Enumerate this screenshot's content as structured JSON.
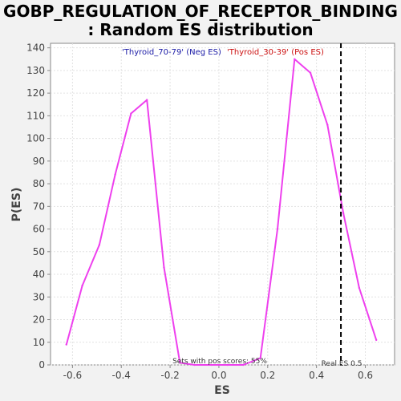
{
  "chart_data": {
    "type": "line",
    "title": "GOBP_REGULATION_OF_RECEPTOR_BINDING",
    "subtitle": ": Random ES distribution",
    "xlabel": "ES",
    "ylabel": "P(ES)",
    "xlim": [
      -0.69,
      0.72
    ],
    "ylim": [
      0,
      142
    ],
    "xticks": [
      -0.6,
      -0.4,
      -0.2,
      0.0,
      0.2,
      0.4,
      0.6
    ],
    "xtick_labels": [
      "-0.6",
      "-0.4",
      "-0.2",
      "0.0",
      "0.2",
      "0.4",
      "0.6"
    ],
    "yticks": [
      0,
      10,
      20,
      30,
      40,
      50,
      60,
      70,
      80,
      90,
      100,
      110,
      120,
      130,
      140
    ],
    "ytick_labels": [
      "0",
      "10",
      "20",
      "30",
      "40",
      "50",
      "60",
      "70",
      "80",
      "90",
      "100",
      "110",
      "120",
      "130",
      "140"
    ],
    "grid": true,
    "legend": [
      {
        "label": "'Thyroid_70-79' (Neg ES)",
        "color": "#1a1aa6"
      },
      {
        "label": "'Thyroid_30-39' (Pos ES)",
        "color": "#cc1111"
      }
    ],
    "series": [
      {
        "color": "#ee40ee",
        "x": [
          -0.625,
          -0.56,
          -0.49,
          -0.425,
          -0.36,
          -0.295,
          -0.225,
          -0.16,
          -0.1,
          -0.03,
          0.035,
          0.1,
          0.17,
          0.24,
          0.31,
          0.375,
          0.445,
          0.51,
          0.575,
          0.645
        ],
        "y": [
          9,
          35,
          53,
          84,
          111,
          117,
          43,
          1,
          0,
          0,
          0,
          0,
          3,
          60,
          135,
          129,
          106,
          67,
          34,
          11
        ]
      }
    ],
    "real_es": 0.5,
    "annotations": {
      "pos_scores": "Sets with pos scores: 55%",
      "real_es": "Real ES 0.5"
    }
  }
}
